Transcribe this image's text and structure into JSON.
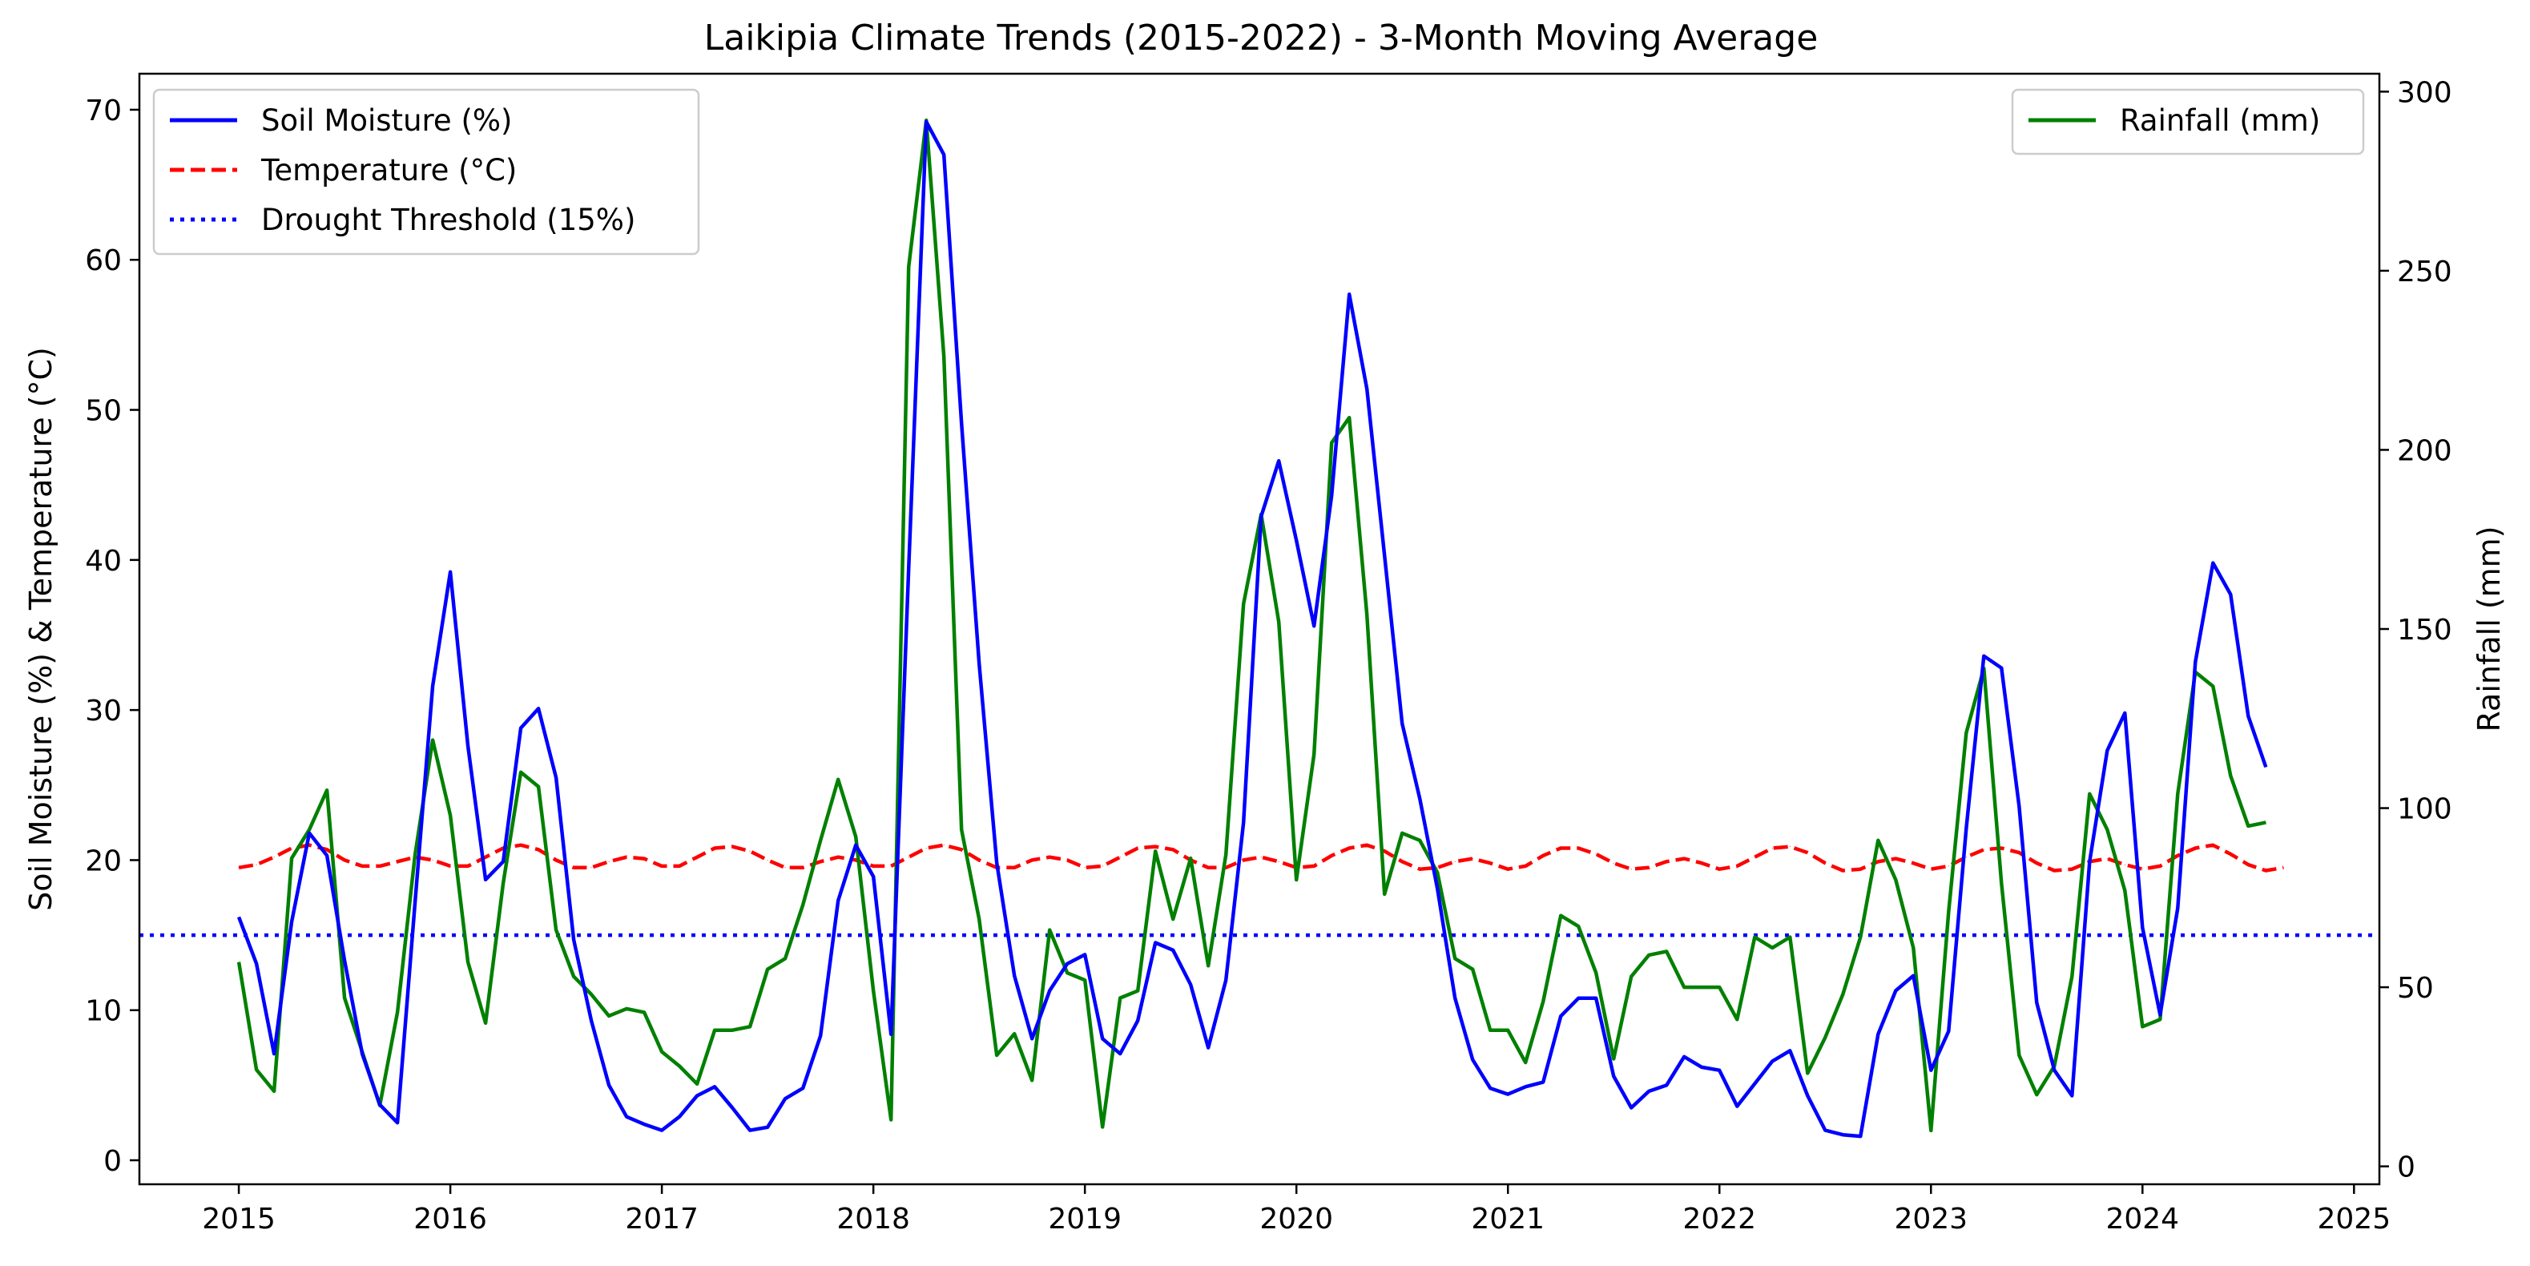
{
  "chart_data": {
    "type": "line",
    "title": "Laikipia Climate Trends (2015-2022) - 3-Month Moving Average",
    "ylabel_left": "Soil Moisture (%) & Temperature (°C)",
    "ylabel_right": "Rainfall (mm)",
    "xlabel": "",
    "x_start": "2015-01",
    "x_step": "1 month",
    "xlim": [
      2014.53,
      2025.12
    ],
    "ylim_left": [
      -1.6,
      72.4
    ],
    "ylim_right": [
      -5,
      305
    ],
    "x_ticks": [
      2015,
      2016,
      2017,
      2018,
      2019,
      2020,
      2021,
      2022,
      2023,
      2024,
      2025
    ],
    "y_ticks_left": [
      0,
      10,
      20,
      30,
      40,
      50,
      60,
      70
    ],
    "y_ticks_right": [
      0,
      50,
      100,
      150,
      200,
      250,
      300
    ],
    "grid": false,
    "legend_left": "top-left",
    "legend_right": "top-right",
    "series": [
      {
        "name": "Soil Moisture (%)",
        "axis": "left",
        "color": "#0000ff",
        "style": "solid",
        "values": [
          16.2,
          13.1,
          7.1,
          15.9,
          21.8,
          20.3,
          13.3,
          7.1,
          3.7,
          2.5,
          17.2,
          31.6,
          39.2,
          27.6,
          18.7,
          19.9,
          28.8,
          30.1,
          25.5,
          14.7,
          9.3,
          5.0,
          2.9,
          2.4,
          2.0,
          2.9,
          4.3,
          4.9,
          3.5,
          2.0,
          2.2,
          4.1,
          4.8,
          8.3,
          17.3,
          21.0,
          18.9,
          8.4,
          39.4,
          69.2,
          67.0,
          49.1,
          33.1,
          19.8,
          12.3,
          8.1,
          11.3,
          13.1,
          13.7,
          8.1,
          7.1,
          9.3,
          14.5,
          14.0,
          11.7,
          7.5,
          12.0,
          22.5,
          42.9,
          46.6,
          41.3,
          35.6,
          44.3,
          57.7,
          51.4,
          40.3,
          29.1,
          24.1,
          18.1,
          10.8,
          6.7,
          4.8,
          4.4,
          4.9,
          5.2,
          9.6,
          10.8,
          10.8,
          5.6,
          3.5,
          4.6,
          5.0,
          6.9,
          6.2,
          6.0,
          3.6,
          5.1,
          6.6,
          7.3,
          4.3,
          2.0,
          1.7,
          1.6,
          8.4,
          11.3,
          12.3,
          6.0,
          8.6,
          22.1,
          33.6,
          32.8,
          23.6,
          10.5,
          6.0,
          4.3,
          19.9,
          27.3,
          29.8,
          15.5,
          9.7,
          16.8,
          33.2,
          39.8,
          37.7,
          29.6,
          26.2
        ]
      },
      {
        "name": "Temperature (°C)",
        "axis": "left",
        "color": "#ff0000",
        "style": "dashed",
        "values": [
          19.5,
          19.7,
          20.2,
          20.8,
          21.0,
          20.7,
          20.0,
          19.6,
          19.6,
          19.9,
          20.2,
          20.0,
          19.6,
          19.6,
          20.2,
          20.8,
          21.0,
          20.7,
          20.0,
          19.5,
          19.5,
          19.9,
          20.2,
          20.1,
          19.6,
          19.6,
          20.2,
          20.8,
          20.9,
          20.6,
          20.0,
          19.5,
          19.5,
          19.9,
          20.2,
          20.0,
          19.6,
          19.6,
          20.2,
          20.8,
          21.0,
          20.7,
          20.0,
          19.5,
          19.5,
          20.0,
          20.2,
          20.0,
          19.5,
          19.6,
          20.2,
          20.8,
          20.9,
          20.7,
          20.0,
          19.5,
          19.5,
          20.0,
          20.2,
          19.9,
          19.5,
          19.6,
          20.3,
          20.8,
          21.0,
          20.6,
          19.9,
          19.4,
          19.5,
          19.9,
          20.1,
          19.8,
          19.4,
          19.6,
          20.3,
          20.8,
          20.8,
          20.4,
          19.8,
          19.4,
          19.5,
          19.9,
          20.1,
          19.8,
          19.4,
          19.6,
          20.2,
          20.8,
          20.9,
          20.5,
          19.8,
          19.3,
          19.4,
          19.9,
          20.1,
          19.8,
          19.4,
          19.6,
          20.2,
          20.7,
          20.8,
          20.5,
          19.8,
          19.3,
          19.4,
          19.9,
          20.1,
          19.7,
          19.4,
          19.6,
          20.3,
          20.8,
          21.0,
          20.4,
          19.7,
          19.3,
          19.5
        ]
      },
      {
        "name": "Drought Threshold (15%)",
        "axis": "left",
        "color": "#0000ff",
        "style": "dotted",
        "values": [
          15
        ]
      },
      {
        "name": "Rainfall (mm)",
        "axis": "right",
        "color": "#008000",
        "style": "solid",
        "values": [
          57,
          27,
          21,
          86,
          94,
          105,
          47,
          32,
          17,
          43,
          87,
          119,
          98,
          57,
          40,
          79,
          110,
          106,
          66,
          53,
          48,
          42,
          44,
          43,
          32,
          28,
          23,
          38,
          38,
          39,
          55,
          58,
          73,
          91,
          108,
          92,
          49,
          13,
          251,
          292,
          226,
          94,
          69,
          31,
          37,
          24,
          66,
          54,
          52,
          11,
          47,
          49,
          88,
          69,
          86,
          56,
          87,
          157,
          182,
          152,
          80,
          115,
          202,
          209,
          154,
          76,
          93,
          91,
          82,
          58,
          55,
          38,
          38,
          29,
          46,
          70,
          67,
          54,
          30,
          53,
          59,
          60,
          50,
          50,
          50,
          41,
          64,
          61,
          64,
          26,
          36,
          48,
          64,
          91,
          80,
          61,
          10,
          71,
          121,
          139,
          79,
          31,
          20,
          28,
          53,
          104,
          94,
          77,
          39,
          41,
          104,
          138,
          134,
          109,
          95,
          96
        ]
      }
    ]
  }
}
